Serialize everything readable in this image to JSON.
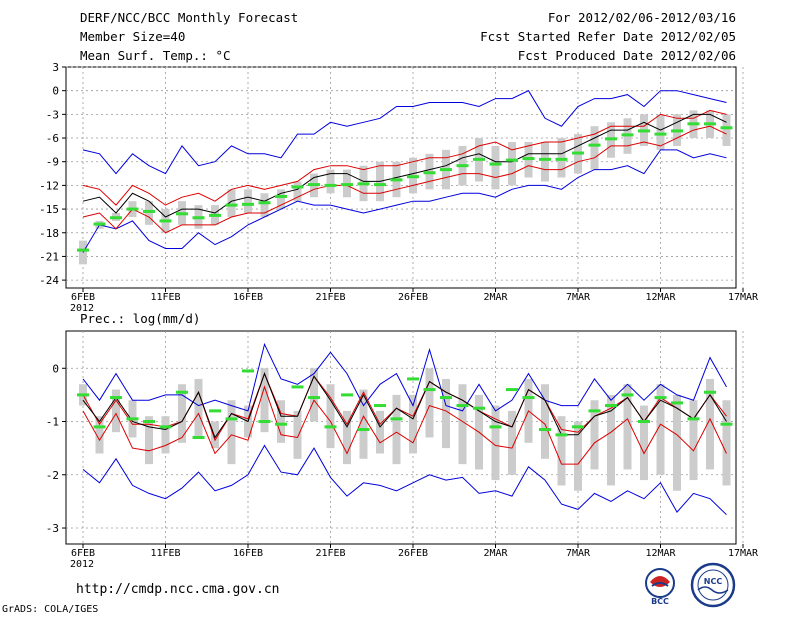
{
  "header": {
    "title": "DERF/NCC/BCC Monthly Forecast",
    "member_size": "Member Size=40",
    "period": "For 2012/02/06-2012/03/16",
    "started": "Fcst Started Refer Date 2012/02/05",
    "produced": "Fcst Produced Date 2012/02/06"
  },
  "footer": {
    "url": "http://cmdp.ncc.cma.gov.cn",
    "grads": "GrADS: COLA/IGES",
    "logo1_text": "BCC",
    "logo2_text": "NCC"
  },
  "colors": {
    "box": "#cccccc",
    "mean": "#33dd33",
    "median": "#000000",
    "inner": "#dd0000",
    "outer": "#0000dd",
    "grid": "#999999"
  },
  "chart_data": [
    {
      "type": "box",
      "title": "Mean Surf. Temp.: °C",
      "xlabel": "",
      "ylabel": "Mean Surf. Temp.: °C",
      "ylim": [
        -25,
        3
      ],
      "yticks": [
        3,
        0,
        -3,
        -6,
        -9,
        -12,
        -15,
        -18,
        -21,
        -24
      ],
      "xtick_labels": [
        "6FEB",
        "11FEB",
        "16FEB",
        "21FEB",
        "26FEB",
        "2MAR",
        "7MAR",
        "12MAR",
        "17MAR"
      ],
      "xtick_day_index": [
        0,
        5,
        10,
        15,
        20,
        25,
        30,
        35,
        40
      ],
      "year_label": "2012",
      "days": 40,
      "outer_upper": [
        -7.5,
        -8,
        -10.5,
        -8,
        -9.5,
        -10.5,
        -7,
        -9.5,
        -9,
        -7,
        -8,
        -8,
        -8.5,
        -5.5,
        -5.5,
        -4,
        -4.5,
        -4,
        -3.5,
        -2,
        -2,
        -1.5,
        -1.5,
        -1.5,
        -2,
        -1,
        -1,
        0,
        -3.5,
        -4.5,
        -2,
        -1,
        -1,
        -0.5,
        -2,
        0,
        0,
        -0.5,
        -1,
        -1.5
      ],
      "upper_inner": [
        -12,
        -12.5,
        -14.5,
        -12,
        -13,
        -14.5,
        -13.5,
        -13,
        -14,
        -12.5,
        -12,
        -12.5,
        -12,
        -11.5,
        -10,
        -9.5,
        -9.5,
        -10,
        -9.5,
        -9.5,
        -9,
        -8.5,
        -8.5,
        -8,
        -7,
        -6.5,
        -7.5,
        -7,
        -6.5,
        -6.5,
        -6,
        -5.5,
        -4.5,
        -4.5,
        -4.5,
        -3,
        -3.5,
        -3.5,
        -2.5,
        -3
      ],
      "median": [
        -14,
        -13.5,
        -15.5,
        -13,
        -14,
        -16,
        -15,
        -15,
        -15.5,
        -14,
        -13.5,
        -14,
        -13,
        -12.5,
        -11,
        -10.5,
        -10.5,
        -11.5,
        -11.5,
        -11,
        -10.5,
        -10,
        -9.5,
        -8.5,
        -8,
        -9,
        -9,
        -8,
        -8,
        -8,
        -7,
        -6,
        -5,
        -5,
        -4,
        -5,
        -4,
        -3,
        -3,
        -4
      ],
      "lower_inner": [
        -16,
        -15.5,
        -17.5,
        -15,
        -16,
        -18,
        -17,
        -17,
        -17,
        -16,
        -15.5,
        -15.5,
        -14.5,
        -13.5,
        -12.5,
        -12,
        -12,
        -13,
        -13,
        -12.5,
        -12,
        -11.5,
        -11,
        -10.5,
        -10.5,
        -11,
        -10.5,
        -9.5,
        -10,
        -10,
        -9,
        -8.5,
        -7,
        -7,
        -6.5,
        -7,
        -6,
        -5,
        -4.5,
        -5.5
      ],
      "outer_lower": [
        -20.5,
        -17,
        -17.5,
        -16.5,
        -19,
        -20,
        -20,
        -18,
        -19.5,
        -18.5,
        -17,
        -16,
        -15,
        -14,
        -14.5,
        -14.5,
        -15,
        -15.5,
        -15,
        -14.5,
        -14,
        -14,
        -13.5,
        -13,
        -13,
        -13.5,
        -12.5,
        -12,
        -12,
        -12.5,
        -11,
        -10,
        -10,
        -9.5,
        -10.5,
        -7.5,
        -7.5,
        -8.5,
        -8,
        -8.5
      ],
      "box_top": [
        -19,
        -16.5,
        -15.5,
        -14,
        -14,
        -15,
        -14,
        -14.5,
        -14.5,
        -12.5,
        -12.5,
        -13,
        -12.5,
        -11.5,
        -10.5,
        -10,
        -10,
        -9.5,
        -9,
        -9,
        -8.5,
        -8,
        -7.5,
        -7,
        -6,
        -7,
        -6.5,
        -6.5,
        -6.5,
        -6,
        -5.5,
        -4.5,
        -4,
        -3.5,
        -3,
        -3,
        -3,
        -2.5,
        -2.5,
        -3
      ],
      "box_bottom": [
        -22,
        -17.5,
        -16.5,
        -16,
        -17,
        -18,
        -17,
        -17.5,
        -17,
        -16,
        -15.5,
        -16,
        -15,
        -14,
        -13.5,
        -13,
        -13.5,
        -14,
        -14,
        -13.5,
        -13,
        -12.5,
        -12.5,
        -12,
        -11.5,
        -12.5,
        -12,
        -11,
        -11.5,
        -11,
        -10.5,
        -10,
        -8.5,
        -8,
        -7,
        -7.5,
        -7,
        -6,
        -6,
        -7
      ],
      "mean": [
        -20.2,
        -16.9,
        -16.1,
        -15,
        -15.3,
        -16.5,
        -15.6,
        -16.1,
        -15.8,
        -14.5,
        -14.4,
        -14.2,
        -13.4,
        -12.2,
        -11.9,
        -12,
        -11.9,
        -11.8,
        -11.9,
        -11.3,
        -10.9,
        -10.4,
        -10,
        -9.5,
        -8.7,
        -9.3,
        -8.8,
        -8.6,
        -8.7,
        -8.7,
        -7.9,
        -6.9,
        -6.1,
        -5.6,
        -5.1,
        -5.5,
        -5.1,
        -4.2,
        -4.2,
        -4.7
      ]
    },
    {
      "type": "box",
      "title": "Prec.: log(mm/d)",
      "xlabel": "",
      "ylabel": "Prec.: log(mm/d)",
      "ylim": [
        -3.3,
        0.7
      ],
      "yticks": [
        0,
        -1,
        -2,
        -3
      ],
      "xtick_labels": [
        "6FEB",
        "11FEB",
        "16FEB",
        "21FEB",
        "26FEB",
        "2MAR",
        "7MAR",
        "12MAR",
        "17MAR"
      ],
      "xtick_day_index": [
        0,
        5,
        10,
        15,
        20,
        25,
        30,
        35,
        40
      ],
      "year_label": "2012",
      "days": 40,
      "outer_upper": [
        -0.2,
        -0.6,
        -0.1,
        -0.6,
        -0.6,
        -0.5,
        -0.5,
        -0.7,
        -0.6,
        -0.7,
        -0.8,
        0.45,
        -0.2,
        -0.3,
        -0.1,
        0.3,
        -0.1,
        -0.7,
        -0.3,
        -0.1,
        -0.7,
        0.35,
        -0.7,
        -0.8,
        -0.3,
        -0.8,
        -0.6,
        -0.1,
        -0.6,
        -0.7,
        -0.7,
        -0.2,
        -0.6,
        -0.3,
        -0.6,
        -0.3,
        -0.5,
        -0.6,
        0.2,
        -0.35
      ],
      "upper_inner": [
        -0.5,
        -1.05,
        -0.6,
        -1.05,
        -1.05,
        -1.1,
        -1.0,
        -0.45,
        -1.35,
        -0.85,
        -0.95,
        -0.1,
        -0.85,
        -0.9,
        -0.15,
        -0.55,
        -1.05,
        -0.45,
        -1.05,
        -0.75,
        -0.9,
        -0.25,
        -0.45,
        -0.6,
        -0.8,
        -0.95,
        -1.1,
        -0.4,
        -0.6,
        -1.15,
        -1.2,
        -0.9,
        -0.75,
        -0.55,
        -1.0,
        -0.55,
        -0.75,
        -0.95,
        -0.5,
        -0.9
      ],
      "median": [
        -0.6,
        -1.0,
        -0.55,
        -1.0,
        -1.1,
        -1.15,
        -1.0,
        -0.45,
        -1.3,
        -0.85,
        -1.0,
        -0.1,
        -0.9,
        -0.9,
        -0.15,
        -0.6,
        -1.1,
        -0.5,
        -1.1,
        -0.75,
        -0.95,
        -0.25,
        -0.45,
        -0.6,
        -0.8,
        -1.0,
        -1.1,
        -0.4,
        -0.6,
        -1.25,
        -1.25,
        -0.9,
        -0.8,
        -0.55,
        -1.0,
        -0.6,
        -0.75,
        -0.95,
        -0.5,
        -1.0
      ],
      "lower_inner": [
        -0.8,
        -1.35,
        -0.85,
        -1.5,
        -1.55,
        -1.45,
        -1.3,
        -0.85,
        -1.6,
        -1.25,
        -1.35,
        -0.35,
        -1.25,
        -1.3,
        -0.6,
        -1.0,
        -1.6,
        -0.9,
        -1.4,
        -1.2,
        -1.4,
        -0.7,
        -0.8,
        -1.0,
        -1.2,
        -1.45,
        -1.5,
        -0.8,
        -1.05,
        -1.8,
        -1.8,
        -1.4,
        -1.2,
        -0.95,
        -1.6,
        -1.05,
        -1.25,
        -1.55,
        -0.95,
        -1.6
      ],
      "outer_lower": [
        -1.9,
        -2.15,
        -1.7,
        -2.2,
        -2.35,
        -2.45,
        -2.25,
        -1.95,
        -2.3,
        -2.2,
        -2.0,
        -1.45,
        -1.95,
        -2.0,
        -1.5,
        -2.05,
        -2.4,
        -2.15,
        -2.2,
        -2.3,
        -2.15,
        -2.0,
        -2.1,
        -2.05,
        -2.35,
        -2.3,
        -2.4,
        -1.85,
        -2.1,
        -2.55,
        -2.65,
        -2.35,
        -2.5,
        -2.3,
        -2.45,
        -2.15,
        -2.7,
        -2.35,
        -2.45,
        -2.75
      ],
      "box_top": [
        -0.3,
        -0.9,
        -0.4,
        -0.6,
        -0.9,
        -0.9,
        -0.3,
        -0.2,
        -1.0,
        -0.6,
        -0.7,
        0.0,
        -0.6,
        -0.8,
        0.0,
        -0.3,
        -0.8,
        -0.4,
        -0.8,
        -0.5,
        -0.5,
        0.0,
        -0.2,
        -0.3,
        -0.5,
        -0.7,
        -0.8,
        -0.2,
        -0.3,
        -0.9,
        -1.0,
        -0.6,
        -0.5,
        -0.3,
        -0.7,
        -0.3,
        -0.5,
        -0.6,
        -0.2,
        -0.6
      ],
      "box_bottom": [
        -0.7,
        -1.6,
        -1.2,
        -1.3,
        -1.8,
        -1.6,
        -1.4,
        -1.3,
        -1.5,
        -1.8,
        -1.3,
        -1.2,
        -1.4,
        -1.7,
        -1.0,
        -1.5,
        -1.8,
        -1.7,
        -1.6,
        -1.8,
        -1.6,
        -1.3,
        -1.5,
        -1.8,
        -1.9,
        -2.1,
        -2.0,
        -1.4,
        -1.7,
        -2.2,
        -2.3,
        -1.9,
        -2.2,
        -1.9,
        -2.1,
        -2.0,
        -2.3,
        -2.1,
        -1.9,
        -2.2
      ],
      "mean": [
        -0.5,
        -1.1,
        -0.55,
        -0.95,
        -1.0,
        -1.1,
        -0.45,
        -1.3,
        -0.8,
        -0.95,
        -0.05,
        -1.0,
        -1.05,
        -0.35,
        -0.55,
        -1.1,
        -0.5,
        -1.15,
        -0.7,
        -0.95,
        -0.2,
        -0.4,
        -0.55,
        -0.7,
        -0.75,
        -1.1,
        -0.4,
        -0.55,
        -1.15,
        -1.25,
        -1.1,
        -0.8,
        -0.7,
        -0.5,
        -1.0,
        -0.55,
        -0.65,
        -0.95,
        -0.45,
        -1.05
      ]
    }
  ]
}
